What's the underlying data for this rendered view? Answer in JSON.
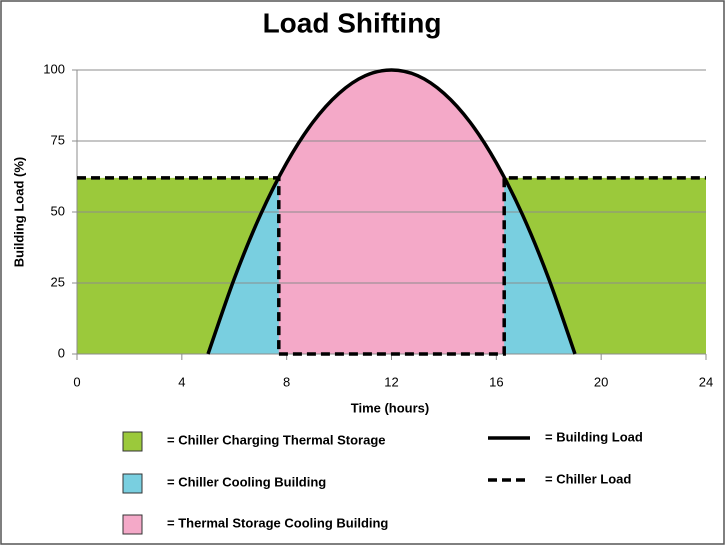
{
  "chart_data": {
    "type": "area-line",
    "title": "Load Shifting",
    "x_label": "Time (hours)",
    "y_label": "Building Load (%)",
    "xlim": [
      0,
      24
    ],
    "xticks": [
      0,
      4,
      8,
      12,
      16,
      20,
      24
    ],
    "ylim": [
      0,
      100
    ],
    "yticks": [
      0,
      25,
      50,
      75,
      100
    ],
    "grid": true,
    "series": [
      {
        "name": "= Building Load",
        "color": "#000000",
        "style": "solid",
        "x": [
          5,
          6,
          7,
          8,
          9,
          10,
          11,
          12,
          13,
          14,
          15,
          16,
          17,
          18,
          19
        ],
        "values": [
          0,
          26.5,
          49,
          67.3,
          81.6,
          91.8,
          98,
          100,
          98,
          91.8,
          81.6,
          67.3,
          49,
          26.5,
          0
        ]
      },
      {
        "name": "= Chiller Load",
        "color": "#000000",
        "style": "dashed",
        "x": [
          0,
          7.7,
          7.7,
          16.3,
          16.3,
          24
        ],
        "values": [
          62,
          62,
          0,
          0,
          62,
          62
        ]
      }
    ],
    "regions": [
      {
        "name": "= Chiller Charging Thermal Storage",
        "color": "#9bc93b"
      },
      {
        "name": "= Chiller Cooling Building",
        "color": "#79cfe0"
      },
      {
        "name": "= Thermal Storage Cooling Building",
        "color": "#f4a9c8"
      }
    ]
  }
}
